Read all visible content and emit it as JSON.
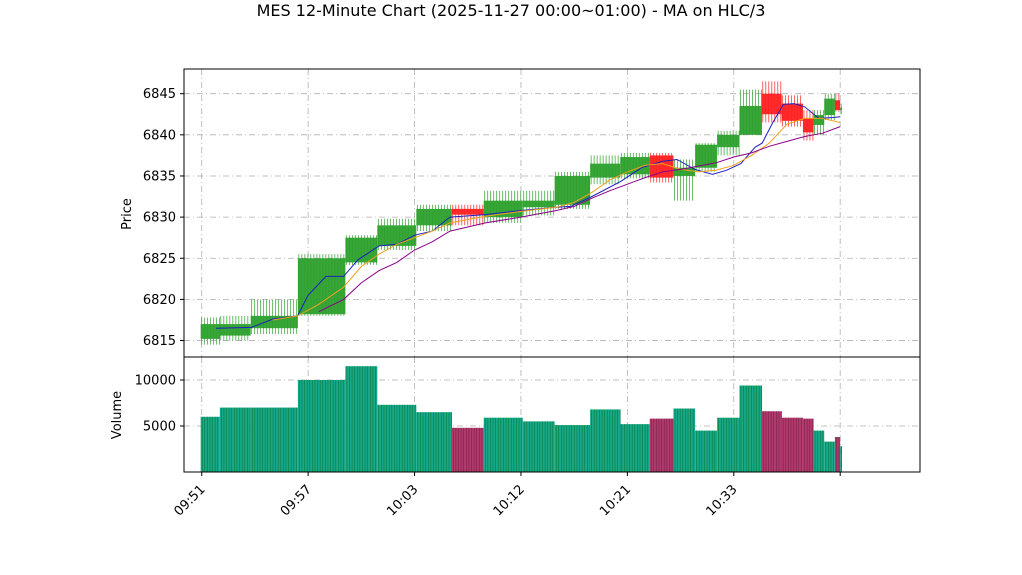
{
  "chart_data": {
    "type": "candlestick",
    "title": "MES 12-Minute Chart (2025-11-27 00:00~01:00) - MA on HLC/3",
    "price_panel": {
      "ylabel": "Price",
      "ylim": [
        6813,
        6848
      ],
      "yticks": [
        6815,
        6820,
        6825,
        6830,
        6835,
        6840,
        6845
      ],
      "grid": true
    },
    "volume_panel": {
      "ylabel": "Volume",
      "ylim": [
        0,
        12500
      ],
      "yticks": [
        5000,
        10000
      ],
      "ytick_labels": [
        "5000",
        "10000"
      ],
      "grid": true
    },
    "xlim": [
      0.5,
      21.25
    ],
    "xticks": [
      {
        "x": 1,
        "label": "09:51"
      },
      {
        "x": 4,
        "label": "09:57"
      },
      {
        "x": 7,
        "label": "10:03"
      },
      {
        "x": 10,
        "label": "10:12"
      },
      {
        "x": 13,
        "label": "10:21"
      },
      {
        "x": 16,
        "label": "10:33"
      },
      {
        "x": 19,
        "label": ""
      }
    ],
    "colors": {
      "up": "#2ca02c",
      "down": "#ff2020",
      "ma_fast": "#1f1fbf",
      "ma_mid": "#f0a020",
      "ma_slow": "#8b008b",
      "vol_up": "#17a889",
      "vol_down": "#b03a6a",
      "grid": "#b0b0b0"
    },
    "candles": [
      {
        "x0": 0.97,
        "x1": 1.51,
        "open": 6815.2,
        "high": 6817.8,
        "low": 6814.5,
        "close": 6817.0,
        "volume": 6000
      },
      {
        "x0": 1.51,
        "x1": 2.38,
        "open": 6815.6,
        "high": 6818.0,
        "low": 6815.0,
        "close": 6817.0,
        "volume": 7000
      },
      {
        "x0": 2.38,
        "x1": 3.71,
        "open": 6816.5,
        "high": 6820.0,
        "low": 6815.8,
        "close": 6818.0,
        "volume": 7000
      },
      {
        "x0": 3.71,
        "x1": 5.05,
        "open": 6818.2,
        "high": 6825.5,
        "low": 6818.0,
        "close": 6825.0,
        "volume": 10000
      },
      {
        "x0": 5.05,
        "x1": 5.95,
        "open": 6824.5,
        "high": 6827.8,
        "low": 6824.2,
        "close": 6827.5,
        "volume": 11500
      },
      {
        "x0": 5.95,
        "x1": 7.05,
        "open": 6826.5,
        "high": 6829.8,
        "low": 6826.0,
        "close": 6829.0,
        "volume": 7300
      },
      {
        "x0": 7.05,
        "x1": 8.05,
        "open": 6829.0,
        "high": 6831.5,
        "low": 6828.3,
        "close": 6831.0,
        "volume": 6500
      },
      {
        "x0": 8.05,
        "x1": 8.95,
        "open": 6831.0,
        "high": 6831.5,
        "low": 6829.0,
        "close": 6830.3,
        "volume": 4800
      },
      {
        "x0": 8.95,
        "x1": 10.05,
        "open": 6830.0,
        "high": 6833.2,
        "low": 6829.3,
        "close": 6832.0,
        "volume": 5900
      },
      {
        "x0": 10.05,
        "x1": 10.95,
        "open": 6831.2,
        "high": 6833.2,
        "low": 6830.2,
        "close": 6832.0,
        "volume": 5500
      },
      {
        "x0": 10.95,
        "x1": 11.95,
        "open": 6831.5,
        "high": 6835.5,
        "low": 6831.0,
        "close": 6835.0,
        "volume": 5100
      },
      {
        "x0": 11.95,
        "x1": 12.8,
        "open": 6834.8,
        "high": 6837.5,
        "low": 6834.0,
        "close": 6836.5,
        "volume": 6800
      },
      {
        "x0": 12.8,
        "x1": 13.63,
        "open": 6835.2,
        "high": 6837.8,
        "low": 6834.7,
        "close": 6837.3,
        "volume": 5200
      },
      {
        "x0": 13.63,
        "x1": 14.3,
        "open": 6837.5,
        "high": 6837.8,
        "low": 6834.2,
        "close": 6834.8,
        "volume": 5800
      },
      {
        "x0": 14.3,
        "x1": 14.91,
        "open": 6835.0,
        "high": 6837.0,
        "low": 6832.0,
        "close": 6836.0,
        "volume": 6900
      },
      {
        "x0": 14.91,
        "x1": 15.53,
        "open": 6836.0,
        "high": 6839.0,
        "low": 6835.5,
        "close": 6838.8,
        "volume": 4500
      },
      {
        "x0": 15.53,
        "x1": 16.16,
        "open": 6838.5,
        "high": 6840.5,
        "low": 6837.5,
        "close": 6840.0,
        "volume": 5900
      },
      {
        "x0": 16.16,
        "x1": 16.79,
        "open": 6840.0,
        "high": 6845.5,
        "low": 6840.0,
        "close": 6843.5,
        "volume": 9400
      },
      {
        "x0": 16.79,
        "x1": 17.35,
        "open": 6845.0,
        "high": 6846.5,
        "low": 6841.5,
        "close": 6842.5,
        "volume": 6600
      },
      {
        "x0": 17.35,
        "x1": 17.95,
        "open": 6843.8,
        "high": 6844.8,
        "low": 6841.0,
        "close": 6841.7,
        "volume": 5900
      },
      {
        "x0": 17.95,
        "x1": 18.25,
        "open": 6842.0,
        "high": 6843.0,
        "low": 6839.3,
        "close": 6840.3,
        "volume": 5800
      },
      {
        "x0": 18.25,
        "x1": 18.55,
        "open": 6841.2,
        "high": 6843.0,
        "low": 6840.0,
        "close": 6842.4,
        "volume": 4500
      },
      {
        "x0": 18.55,
        "x1": 18.85,
        "open": 6842.4,
        "high": 6845.0,
        "low": 6841.8,
        "close": 6844.4,
        "volume": 3300
      },
      {
        "x0": 18.85,
        "x1": 19.0,
        "open": 6844.2,
        "high": 6845.0,
        "low": 6842.8,
        "close": 6843.0,
        "volume": 3800
      },
      {
        "x0": 19.0,
        "x1": 19.05,
        "open": 6843.0,
        "high": 6843.8,
        "low": 6842.5,
        "close": 6843.3,
        "volume": 2800
      }
    ],
    "series": [
      {
        "key": "ma_fast",
        "x": [
          1.4,
          2.4,
          3.0,
          3.7,
          4.0,
          4.5,
          5.0,
          5.4,
          6.0,
          6.5,
          7.0,
          7.5,
          8.0,
          9.0,
          10.0,
          11.0,
          11.4,
          12.0,
          12.8,
          13.4,
          14.0,
          14.4,
          14.9,
          15.4,
          15.8,
          16.2,
          16.6,
          16.8,
          17.1,
          17.4,
          17.7,
          18.0,
          18.4,
          18.8,
          19.0
        ],
        "y": [
          6816.5,
          6816.6,
          6817.6,
          6818.0,
          6820.5,
          6822.8,
          6822.8,
          6824.8,
          6826.5,
          6826.7,
          6827.8,
          6828.3,
          6830.0,
          6830.3,
          6830.8,
          6831.2,
          6831.3,
          6832.5,
          6834.3,
          6836.0,
          6836.8,
          6837.0,
          6835.8,
          6835.2,
          6835.7,
          6836.5,
          6838.5,
          6839.0,
          6841.5,
          6843.7,
          6843.8,
          6843.4,
          6842.0,
          6842.1,
          6842.2
        ]
      },
      {
        "key": "ma_mid",
        "x": [
          3.0,
          3.7,
          4.3,
          5.0,
          5.5,
          6.0,
          6.5,
          7.0,
          7.5,
          8.0,
          9.0,
          10.0,
          11.0,
          11.5,
          12.0,
          12.5,
          13.0,
          13.5,
          14.0,
          14.5,
          15.0,
          15.5,
          16.0,
          16.5,
          17.0,
          17.5,
          18.0,
          18.5,
          19.0
        ],
        "y": [
          6817.5,
          6818.0,
          6819.4,
          6821.5,
          6824.0,
          6825.5,
          6826.7,
          6827.5,
          6828.3,
          6829.3,
          6830.1,
          6830.7,
          6831.2,
          6831.8,
          6833.0,
          6834.5,
          6835.5,
          6836.3,
          6836.5,
          6835.8,
          6835.5,
          6835.7,
          6836.3,
          6837.5,
          6839.0,
          6841.3,
          6842.0,
          6842.0,
          6841.5
        ]
      },
      {
        "key": "ma_slow",
        "x": [
          4.3,
          5.0,
          5.5,
          6.0,
          6.5,
          7.0,
          7.5,
          8.0,
          9.0,
          10.0,
          11.0,
          11.5,
          12.0,
          12.5,
          13.0,
          13.5,
          14.0,
          14.5,
          15.0,
          15.5,
          16.0,
          16.5,
          17.0,
          17.5,
          18.0,
          18.5,
          19.0
        ],
        "y": [
          6818.5,
          6820.0,
          6822.0,
          6823.5,
          6824.5,
          6826.0,
          6827.0,
          6828.3,
          6829.3,
          6830.0,
          6830.8,
          6831.3,
          6832.3,
          6833.2,
          6834.0,
          6834.8,
          6835.5,
          6835.8,
          6836.2,
          6836.6,
          6837.3,
          6837.8,
          6838.6,
          6839.2,
          6839.8,
          6840.2,
          6841.0
        ]
      }
    ]
  }
}
